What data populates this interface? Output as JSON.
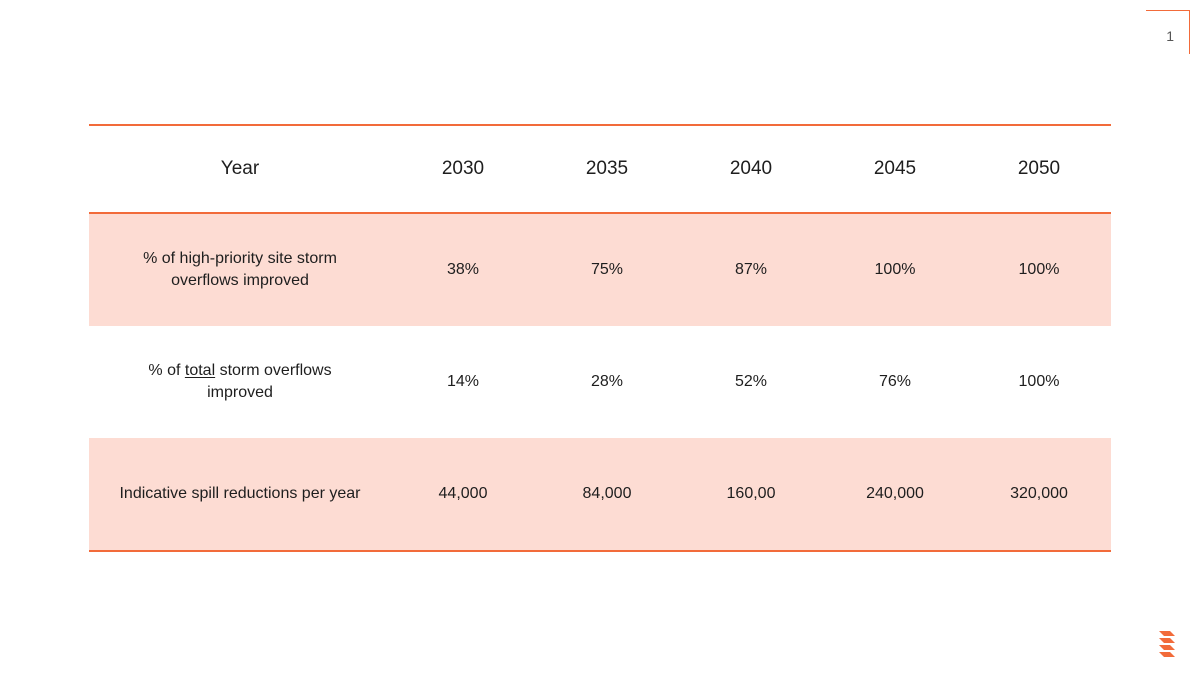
{
  "page_number": "1",
  "table": {
    "header": [
      "Year",
      "2030",
      "2035",
      "2040",
      "2045",
      "2050"
    ],
    "rows": [
      {
        "label_parts": [
          "% of high-priority site storm overflows improved"
        ],
        "values": [
          "38%",
          "75%",
          "87%",
          "100%",
          "100%"
        ]
      },
      {
        "label_parts": [
          "% of ",
          "total",
          " storm overflows improved"
        ],
        "values": [
          "14%",
          "28%",
          "52%",
          "76%",
          "100%"
        ]
      },
      {
        "label_parts": [
          "Indicative spill reductions per year"
        ],
        "values": [
          "44,000",
          "84,000",
          "160,00",
          "240,000",
          "320,000"
        ]
      }
    ]
  },
  "colors": {
    "accent": "#f26b3a",
    "row_shade": "#fddcd3"
  },
  "icons": [
    "corner-bracket",
    "brand-logo-icon"
  ]
}
